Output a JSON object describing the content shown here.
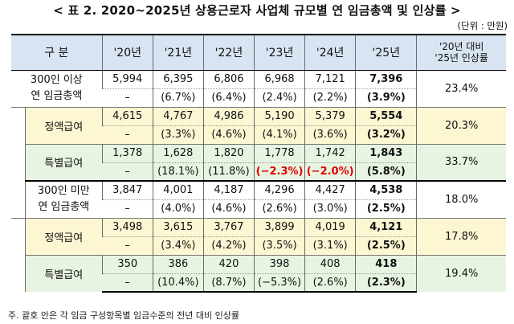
{
  "title": "< 표 2. 2020~2025년 상용근로자 사업체 규모별 연 임금총액 및 인상률 >",
  "unit": "(단위 : 만원)",
  "headers": {
    "category": "구 분",
    "years": [
      "'20년",
      "'21년",
      "'22년",
      "'23년",
      "'24년",
      "'25년"
    ],
    "compare_line1": "'20년 대비",
    "compare_line2": "'25년 인상률"
  },
  "groups": [
    {
      "label_line1": "300인 이상",
      "label_line2": "연 임금총액",
      "total": {
        "values": [
          "5,994",
          "6,395",
          "6,806",
          "6,968",
          "7,121",
          "7,396"
        ],
        "rates": [
          "–",
          "(6.7%)",
          "(6.4%)",
          "(2.4%)",
          "(2.2%)",
          "(3.9%)"
        ],
        "compare": "23.4%"
      },
      "fixed": {
        "label": "정액급여",
        "values": [
          "4,615",
          "4,767",
          "4,986",
          "5,190",
          "5,379",
          "5,554"
        ],
        "rates": [
          "–",
          "(3.3%)",
          "(4.6%)",
          "(4.1%)",
          "(3.6%)",
          "(3.2%)"
        ],
        "compare": "20.3%"
      },
      "special": {
        "label": "특별급여",
        "values": [
          "1,378",
          "1,628",
          "1,820",
          "1,778",
          "1,742",
          "1,843"
        ],
        "rates": [
          "–",
          "(18.1%)",
          "(11.8%)",
          "(−2.3%)",
          "(−2.0%)",
          "(5.8%)"
        ],
        "compare": "33.7%"
      }
    },
    {
      "label_line1": "300인 미만",
      "label_line2": "연 임금총액",
      "total": {
        "values": [
          "3,847",
          "4,001",
          "4,187",
          "4,296",
          "4,427",
          "4,538"
        ],
        "rates": [
          "–",
          "(4.0%)",
          "(4.6%)",
          "(2.6%)",
          "(3.0%)",
          "(2.5%)"
        ],
        "compare": "18.0%"
      },
      "fixed": {
        "label": "정액급여",
        "values": [
          "3,498",
          "3,615",
          "3,767",
          "3,899",
          "4,019",
          "4,121"
        ],
        "rates": [
          "–",
          "(3.4%)",
          "(4.2%)",
          "(3.5%)",
          "(3.1%)",
          "(2.5%)"
        ],
        "compare": "17.8%"
      },
      "special": {
        "label": "특별급여",
        "values": [
          "350",
          "386",
          "420",
          "398",
          "408",
          "418"
        ],
        "rates": [
          "–",
          "(10.4%)",
          "(8.7%)",
          "(−5.3%)",
          "(2.6%)",
          "(2.3%)"
        ],
        "compare": "19.4%"
      }
    }
  ],
  "note": "주. 괄호 안은 각 임금 구성항목별 임금수준의 전년 대비 인상률"
}
